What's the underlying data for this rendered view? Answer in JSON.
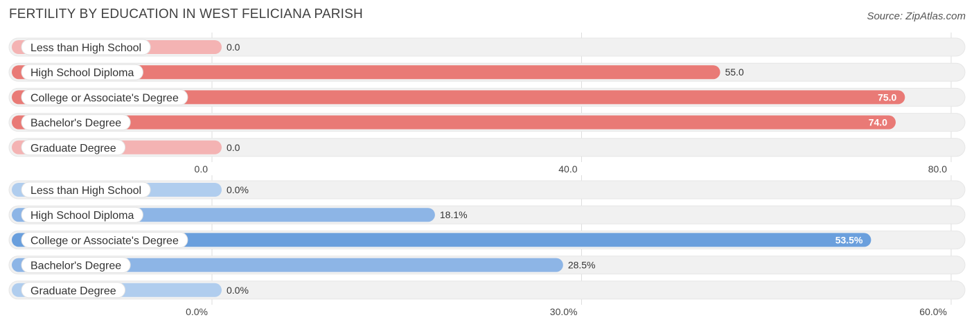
{
  "title": "FERTILITY BY EDUCATION IN WEST FELICIANA PARISH",
  "source": "Source: ZipAtlas.com",
  "colors": {
    "track": "#f1f1f1",
    "red_light": "#f4b3b3",
    "red_mid": "#ee8e8e",
    "red_strong": "#e97a76",
    "blue_light": "#b0cdee",
    "blue_mid": "#8db5e6",
    "blue_strong": "#6a9fdd"
  },
  "chart_data": [
    {
      "type": "bar",
      "orientation": "horizontal",
      "title": "FERTILITY BY EDUCATION IN WEST FELICIANA PARISH",
      "categories": [
        "Less than High School",
        "High School Diploma",
        "College or Associate's Degree",
        "Bachelor's Degree",
        "Graduate Degree"
      ],
      "values": [
        0.0,
        55.0,
        75.0,
        74.0,
        0.0
      ],
      "value_labels": [
        "0.0",
        "55.0",
        "75.0",
        "74.0",
        "0.0"
      ],
      "xlim": [
        0,
        80
      ],
      "ticks": [
        0,
        40,
        80
      ],
      "tick_labels": [
        "0.0",
        "40.0",
        "80.0"
      ],
      "color_scheme": "red"
    },
    {
      "type": "bar",
      "orientation": "horizontal",
      "categories": [
        "Less than High School",
        "High School Diploma",
        "College or Associate's Degree",
        "Bachelor's Degree",
        "Graduate Degree"
      ],
      "values": [
        0.0,
        18.1,
        53.5,
        28.5,
        0.0
      ],
      "value_labels": [
        "0.0%",
        "18.1%",
        "53.5%",
        "28.5%",
        "0.0%"
      ],
      "xlim": [
        0,
        60
      ],
      "ticks": [
        0,
        30,
        60
      ],
      "tick_labels": [
        "0.0%",
        "30.0%",
        "60.0%"
      ],
      "color_scheme": "blue"
    }
  ]
}
